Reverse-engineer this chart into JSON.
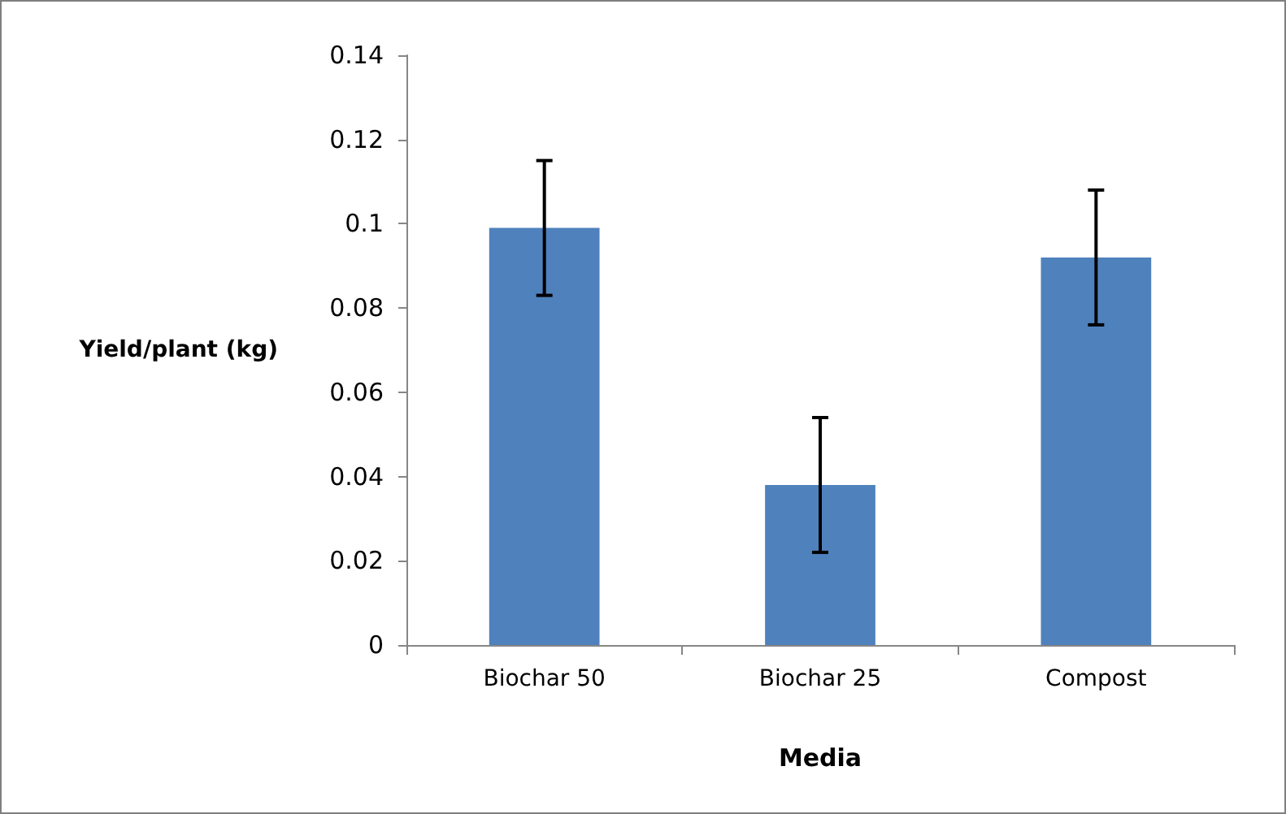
{
  "chart_data": {
    "type": "bar",
    "xlabel": "Media",
    "ylabel": "Yield/plant (kg)",
    "categories": [
      "Biochar 50",
      "Biochar 25",
      "Compost"
    ],
    "values": [
      0.099,
      0.038,
      0.092
    ],
    "errors": [
      0.016,
      0.016,
      0.016
    ],
    "color": "#4f81bd",
    "ylim": [
      0,
      0.14
    ],
    "yticks": [
      0,
      0.02,
      0.04,
      0.06,
      0.08,
      0.1,
      0.12,
      0.14
    ],
    "grid": false
  }
}
